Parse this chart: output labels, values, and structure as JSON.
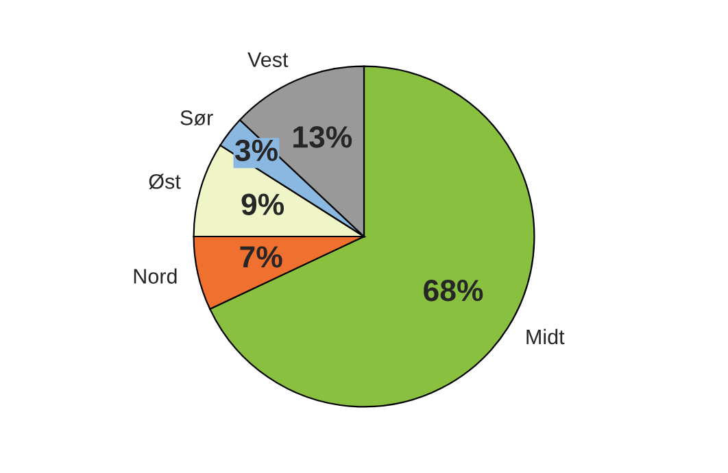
{
  "chart_data": {
    "type": "pie",
    "categories": [
      "Midt",
      "Nord",
      "Øst",
      "Sør",
      "Vest"
    ],
    "values": [
      68,
      7,
      9,
      3,
      13
    ],
    "colors": [
      "#8ac040",
      "#f07030",
      "#f0f5c8",
      "#8ab8e0",
      "#999999"
    ],
    "value_labels": [
      "68%",
      "7%",
      "9%",
      "3%",
      "13%"
    ],
    "legend": false
  }
}
